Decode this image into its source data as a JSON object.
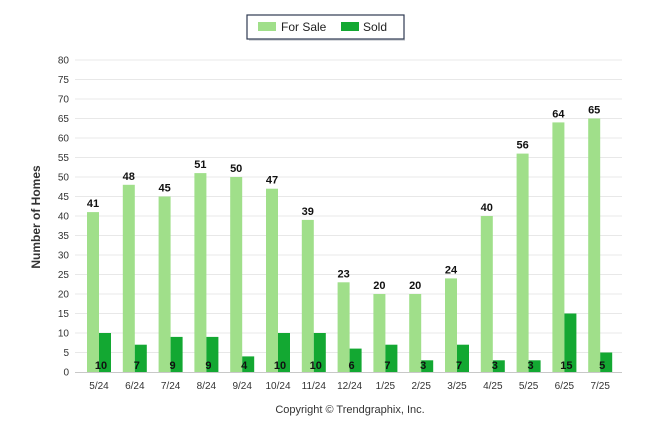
{
  "chart_data": {
    "type": "bar",
    "categories": [
      "5/24",
      "6/24",
      "7/24",
      "8/24",
      "9/24",
      "10/24",
      "11/24",
      "12/24",
      "1/25",
      "2/25",
      "3/25",
      "4/25",
      "5/25",
      "6/25",
      "7/25"
    ],
    "series": [
      {
        "name": "For Sale",
        "color": "#a0df8a",
        "values": [
          41,
          48,
          45,
          51,
          50,
          47,
          39,
          23,
          20,
          20,
          24,
          40,
          56,
          64,
          65
        ]
      },
      {
        "name": "Sold",
        "color": "#13a832",
        "values": [
          10,
          7,
          9,
          9,
          4,
          10,
          10,
          6,
          7,
          3,
          7,
          3,
          3,
          15,
          5
        ]
      }
    ],
    "ylabel": "Number of Homes",
    "xlabel": "",
    "ylim": [
      0,
      80
    ],
    "yticks": [
      0,
      5,
      10,
      15,
      20,
      25,
      30,
      35,
      40,
      45,
      50,
      55,
      60,
      65,
      70,
      75,
      80
    ],
    "grid": true,
    "legend_position": "top-center"
  },
  "footer": {
    "copyright": "Copyright © Trendgraphix, Inc."
  }
}
